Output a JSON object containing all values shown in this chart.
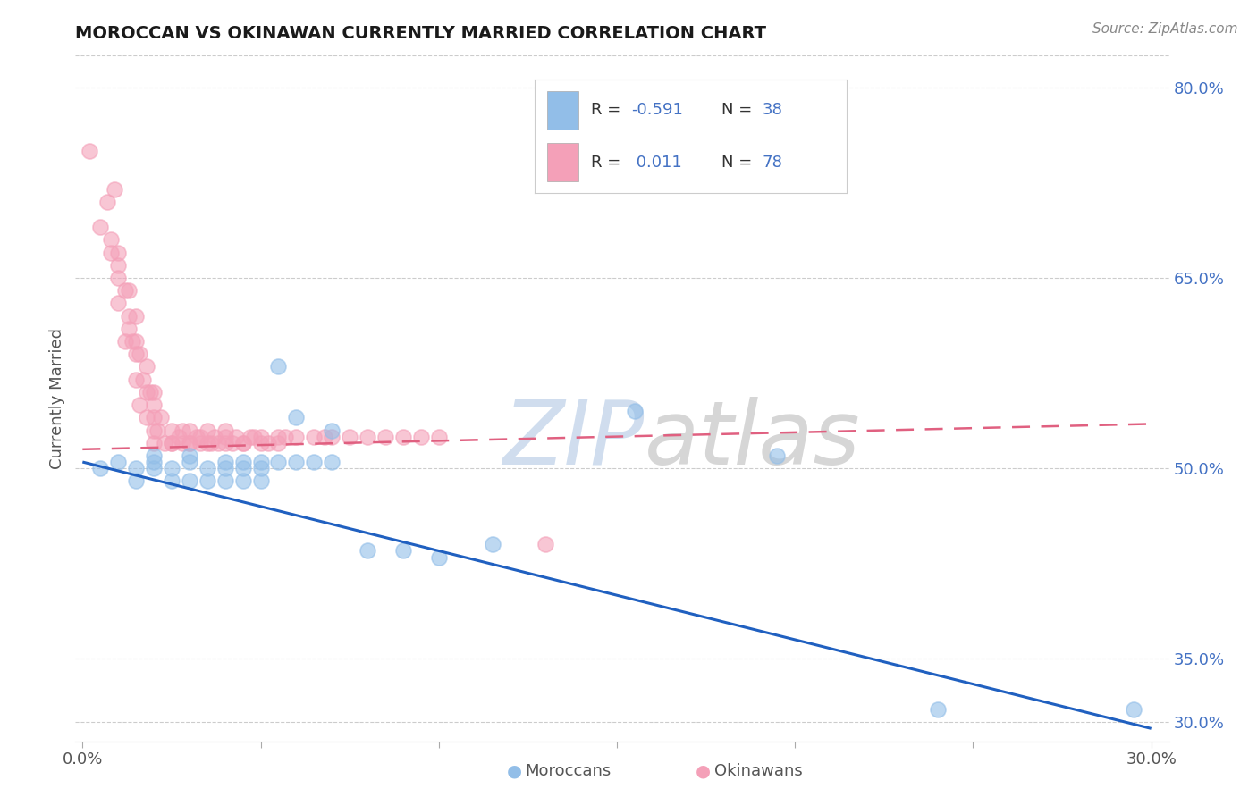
{
  "title": "MOROCCAN VS OKINAWAN CURRENTLY MARRIED CORRELATION CHART",
  "source": "Source: ZipAtlas.com",
  "ylabel": "Currently Married",
  "xlim": [
    -0.002,
    0.305
  ],
  "ylim": [
    0.285,
    0.825
  ],
  "xtick_positions": [
    0.0,
    0.05,
    0.1,
    0.15,
    0.2,
    0.25,
    0.3
  ],
  "xticklabels": [
    "0.0%",
    "",
    "",
    "",
    "",
    "",
    "30.0%"
  ],
  "ytick_positions": [
    0.3,
    0.35,
    0.5,
    0.65,
    0.8
  ],
  "ytick_labels": [
    "30.0%",
    "35.0%",
    "50.0%",
    "65.0%",
    "80.0%"
  ],
  "blue_color": "#92BEE8",
  "pink_color": "#F4A0B8",
  "blue_line_color": "#2060C0",
  "pink_line_color": "#E06080",
  "background_color": "#FFFFFF",
  "grid_color": "#CCCCCC",
  "title_color": "#1a1a1a",
  "source_color": "#888888",
  "right_axis_color": "#4472C4",
  "blue_scatter_x": [
    0.005,
    0.01,
    0.015,
    0.015,
    0.02,
    0.02,
    0.02,
    0.025,
    0.025,
    0.03,
    0.03,
    0.03,
    0.035,
    0.035,
    0.04,
    0.04,
    0.04,
    0.045,
    0.045,
    0.045,
    0.05,
    0.05,
    0.05,
    0.055,
    0.055,
    0.06,
    0.06,
    0.065,
    0.07,
    0.07,
    0.08,
    0.09,
    0.1,
    0.115,
    0.155,
    0.195,
    0.24,
    0.295
  ],
  "blue_scatter_y": [
    0.5,
    0.505,
    0.49,
    0.5,
    0.505,
    0.5,
    0.51,
    0.49,
    0.5,
    0.49,
    0.505,
    0.51,
    0.49,
    0.5,
    0.49,
    0.5,
    0.505,
    0.505,
    0.5,
    0.49,
    0.5,
    0.49,
    0.505,
    0.58,
    0.505,
    0.505,
    0.54,
    0.505,
    0.505,
    0.53,
    0.435,
    0.435,
    0.43,
    0.44,
    0.545,
    0.51,
    0.31,
    0.31
  ],
  "pink_scatter_x": [
    0.002,
    0.005,
    0.007,
    0.008,
    0.008,
    0.009,
    0.01,
    0.01,
    0.01,
    0.01,
    0.012,
    0.012,
    0.013,
    0.013,
    0.013,
    0.014,
    0.015,
    0.015,
    0.015,
    0.015,
    0.016,
    0.016,
    0.017,
    0.018,
    0.018,
    0.018,
    0.019,
    0.02,
    0.02,
    0.02,
    0.02,
    0.02,
    0.021,
    0.022,
    0.023,
    0.025,
    0.025,
    0.025,
    0.027,
    0.028,
    0.028,
    0.03,
    0.03,
    0.03,
    0.032,
    0.033,
    0.033,
    0.035,
    0.035,
    0.036,
    0.037,
    0.038,
    0.04,
    0.04,
    0.04,
    0.042,
    0.043,
    0.045,
    0.045,
    0.047,
    0.048,
    0.05,
    0.05,
    0.052,
    0.055,
    0.055,
    0.057,
    0.06,
    0.065,
    0.068,
    0.07,
    0.075,
    0.08,
    0.085,
    0.09,
    0.095,
    0.1,
    0.13
  ],
  "pink_scatter_y": [
    0.75,
    0.69,
    0.71,
    0.67,
    0.68,
    0.72,
    0.65,
    0.67,
    0.63,
    0.66,
    0.64,
    0.6,
    0.61,
    0.64,
    0.62,
    0.6,
    0.6,
    0.62,
    0.57,
    0.59,
    0.55,
    0.59,
    0.57,
    0.56,
    0.58,
    0.54,
    0.56,
    0.54,
    0.55,
    0.53,
    0.56,
    0.52,
    0.53,
    0.54,
    0.52,
    0.53,
    0.52,
    0.52,
    0.525,
    0.52,
    0.53,
    0.52,
    0.53,
    0.52,
    0.525,
    0.52,
    0.525,
    0.52,
    0.53,
    0.52,
    0.525,
    0.52,
    0.52,
    0.525,
    0.53,
    0.52,
    0.525,
    0.52,
    0.52,
    0.525,
    0.525,
    0.52,
    0.525,
    0.52,
    0.525,
    0.52,
    0.525,
    0.525,
    0.525,
    0.525,
    0.525,
    0.525,
    0.525,
    0.525,
    0.525,
    0.525,
    0.525,
    0.44
  ],
  "blue_trendline_x": [
    0.0,
    0.3
  ],
  "blue_trendline_y": [
    0.505,
    0.295
  ],
  "pink_trendline_x": [
    0.0,
    0.3
  ],
  "pink_trendline_y": [
    0.515,
    0.535
  ]
}
